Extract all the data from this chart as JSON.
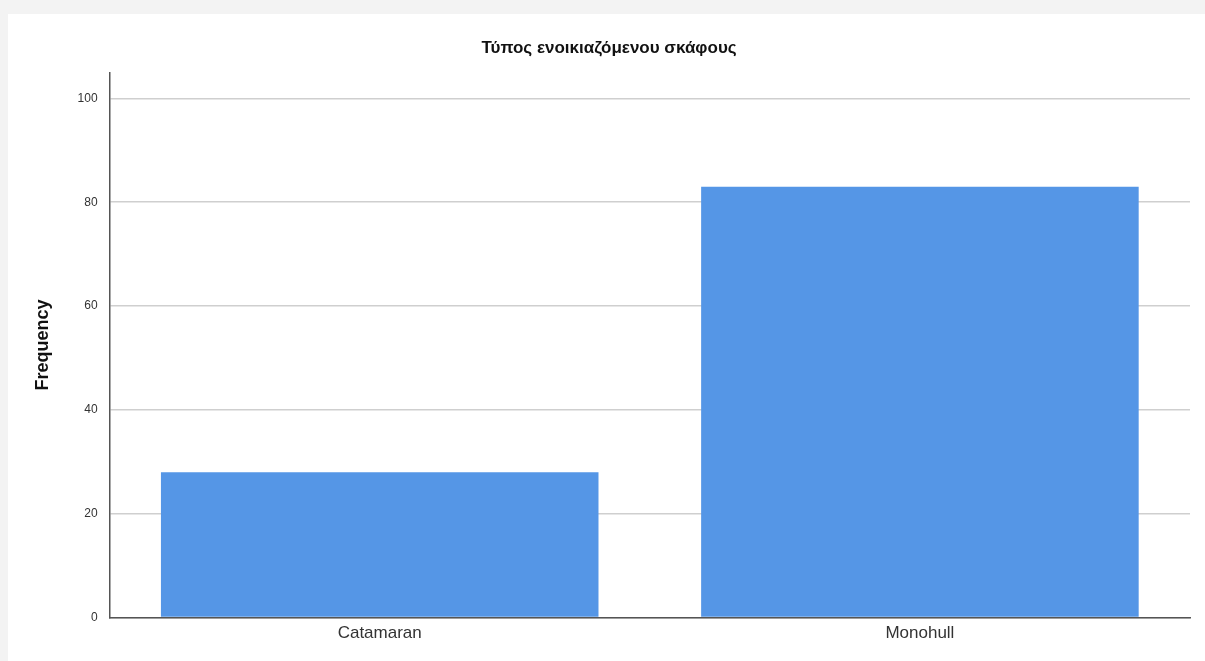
{
  "chart_data": {
    "type": "bar",
    "title": "Τύπος ενοικιαζόμενου σκάφους",
    "ylabel": "Frequency",
    "categories": [
      "Catamaran",
      "Monohull"
    ],
    "series": [
      {
        "color": "#5596e6",
        "values": [
          28,
          83
        ]
      }
    ],
    "ylim": [
      0,
      105
    ],
    "yticks": [
      0,
      20,
      40,
      60,
      80,
      100
    ],
    "grid": "y",
    "legend": false
  }
}
